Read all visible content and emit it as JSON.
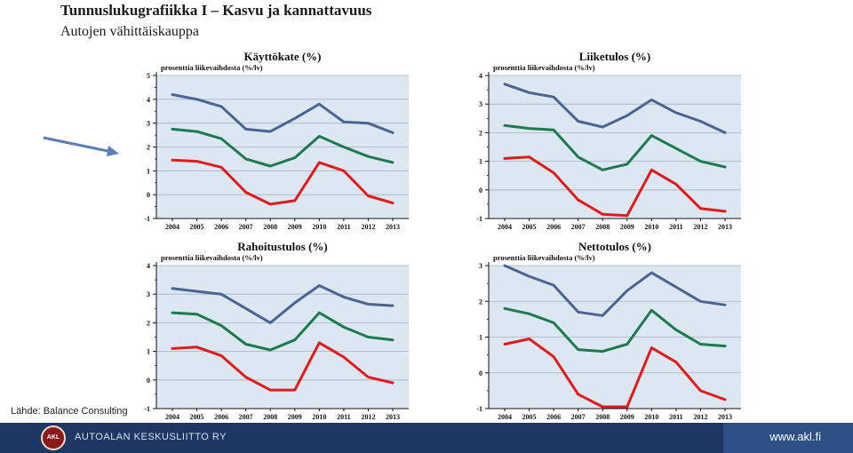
{
  "page": {
    "title": "Tunnuslukugrafiikka I – Kasvu ja kannattavuus",
    "subtitle": "Autojen vähittäiskauppa",
    "source": "Lähde: Balance Consulting"
  },
  "footer": {
    "org_name": "AUTOALAN KESKUSLIITTO RY",
    "logo_text": "AKL",
    "website": "www.akl.fi"
  },
  "colors": {
    "series_upper": "#4a6593",
    "series_middle": "#1d7a4e",
    "series_lower": "#e01b1b",
    "plot_background": "#dde7f1",
    "footer": "#1f3763"
  },
  "chart_data": [
    {
      "type": "line",
      "title": "Käyttökate (%)",
      "unit_label": "prosenttia liikevaihdosta (%/lv)",
      "x": [
        "2004",
        "2005",
        "2006",
        "2007",
        "2008",
        "2009",
        "2010",
        "2011",
        "2012",
        "2013"
      ],
      "ylim": [
        -1,
        5
      ],
      "yticks": [
        -1,
        0,
        1,
        2,
        3,
        4,
        5
      ],
      "grid": true,
      "series": [
        {
          "values": [
            4.2,
            4.0,
            3.7,
            2.75,
            2.65,
            3.2,
            3.8,
            3.05,
            3.0,
            2.6
          ]
        },
        {
          "values": [
            2.75,
            2.65,
            2.35,
            1.5,
            1.2,
            1.55,
            2.45,
            2.0,
            1.6,
            1.35
          ]
        },
        {
          "values": [
            1.45,
            1.4,
            1.15,
            0.1,
            -0.4,
            -0.25,
            1.35,
            1.0,
            -0.05,
            -0.35
          ]
        }
      ]
    },
    {
      "type": "line",
      "title": "Liiketulos (%)",
      "unit_label": "prosenttia liikevaihdosta (%/lv)",
      "x": [
        "2004",
        "2005",
        "2006",
        "2007",
        "2008",
        "2009",
        "2010",
        "2011",
        "2012",
        "2013"
      ],
      "ylim": [
        -1,
        4
      ],
      "yticks": [
        -1,
        0,
        1,
        2,
        3,
        4
      ],
      "grid": true,
      "series": [
        {
          "values": [
            3.7,
            3.4,
            3.25,
            2.4,
            2.2,
            2.6,
            3.15,
            2.7,
            2.4,
            2.0
          ]
        },
        {
          "values": [
            2.25,
            2.15,
            2.1,
            1.15,
            0.7,
            0.9,
            1.9,
            1.45,
            1.0,
            0.8
          ]
        },
        {
          "values": [
            1.1,
            1.15,
            0.6,
            -0.35,
            -0.85,
            -0.9,
            0.7,
            0.2,
            -0.65,
            -0.75
          ]
        }
      ]
    },
    {
      "type": "line",
      "title": "Rahoitustulos (%)",
      "unit_label": "prosenttia liikevaihdosta (%/lv)",
      "x": [
        "2004",
        "2005",
        "2006",
        "2007",
        "2008",
        "2009",
        "2010",
        "2011",
        "2012",
        "2013"
      ],
      "ylim": [
        -1,
        4
      ],
      "yticks": [
        -1,
        0,
        1,
        2,
        3,
        4
      ],
      "grid": true,
      "series": [
        {
          "values": [
            3.2,
            3.1,
            3.0,
            2.5,
            2.0,
            2.7,
            3.3,
            2.9,
            2.65,
            2.6
          ]
        },
        {
          "values": [
            2.35,
            2.3,
            1.9,
            1.25,
            1.05,
            1.4,
            2.35,
            1.85,
            1.5,
            1.4
          ]
        },
        {
          "values": [
            1.1,
            1.15,
            0.85,
            0.1,
            -0.35,
            -0.35,
            1.3,
            0.8,
            0.1,
            -0.1
          ]
        }
      ]
    },
    {
      "type": "line",
      "title": "Nettotulos (%)",
      "unit_label": "prosenttia liikevaihdosta (%/lv)",
      "x": [
        "2004",
        "2005",
        "2006",
        "2007",
        "2008",
        "2009",
        "2010",
        "2011",
        "2012",
        "2013"
      ],
      "ylim": [
        -1,
        3
      ],
      "yticks": [
        -1,
        0,
        1,
        2,
        3
      ],
      "grid": true,
      "series": [
        {
          "values": [
            3.0,
            2.7,
            2.45,
            1.7,
            1.6,
            2.3,
            2.8,
            2.4,
            2.0,
            1.9
          ]
        },
        {
          "values": [
            1.8,
            1.65,
            1.4,
            0.65,
            0.6,
            0.8,
            1.75,
            1.2,
            0.8,
            0.75
          ]
        },
        {
          "values": [
            0.8,
            0.95,
            0.45,
            -0.6,
            -0.95,
            -0.95,
            0.7,
            0.3,
            -0.5,
            -0.75
          ]
        }
      ]
    }
  ]
}
